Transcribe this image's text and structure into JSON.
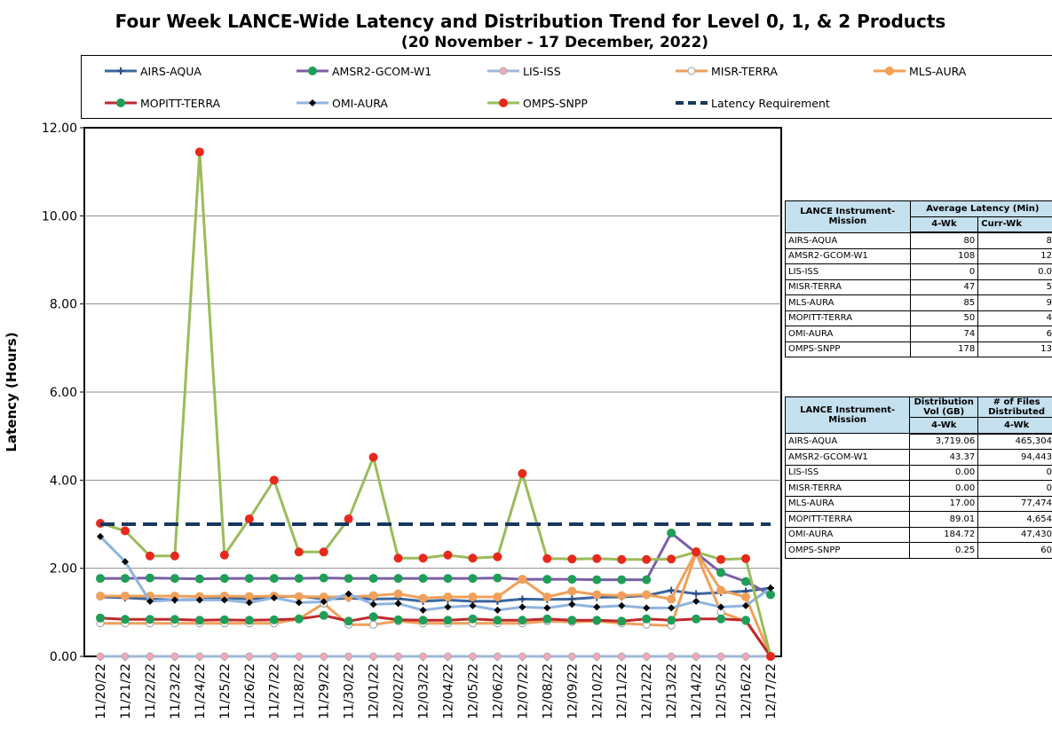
{
  "title": "Four Week LANCE-Wide Latency and Distribution Trend for Level 0, 1, & 2 Products",
  "subtitle": "(20  November   -  17  December,  2022)",
  "legend": [
    {
      "name": "AIRS-AQUA",
      "color": "#3b67a0",
      "marker": "plus"
    },
    {
      "name": "AMSR2-GCOM-W1",
      "color": "#7b5ea7",
      "marker": "dot-green"
    },
    {
      "name": "LIS-ISS",
      "color": "#9fb8d9",
      "marker": "circle-pink"
    },
    {
      "name": "MISR-TERRA",
      "color": "#f0a05a",
      "marker": "circle-white"
    },
    {
      "name": "MLS-AURA",
      "color": "#f0a05a",
      "marker": "dot-orange"
    },
    {
      "name": "MOPITT-TERRA",
      "color": "#c0282d",
      "marker": "dot-green"
    },
    {
      "name": "OMI-AURA",
      "color": "#8fb4e0",
      "marker": "diamond"
    },
    {
      "name": "OMPS-SNPP",
      "color": "#9bbb59",
      "marker": "dot-red"
    },
    {
      "name": "Latency Requirement",
      "color": "#17375e",
      "marker": "dash"
    }
  ],
  "table1": {
    "header_instrument": "LANCE Instrument-Mission",
    "header_avg": "Average Latency (Min)",
    "col_a": "4-Wk",
    "col_b": "Curr-Wk",
    "rows": [
      {
        "name": "AIRS-AQUA",
        "a": "80",
        "b": "8"
      },
      {
        "name": "AMSR2-GCOM-W1",
        "a": "108",
        "b": "12"
      },
      {
        "name": "LIS-ISS",
        "a": "0",
        "b": "0.0"
      },
      {
        "name": "MISR-TERRA",
        "a": "47",
        "b": "5"
      },
      {
        "name": "MLS-AURA",
        "a": "85",
        "b": "9"
      },
      {
        "name": "MOPITT-TERRA",
        "a": "50",
        "b": "4"
      },
      {
        "name": "OMI-AURA",
        "a": "74",
        "b": "6"
      },
      {
        "name": "OMPS-SNPP",
        "a": "178",
        "b": "13"
      }
    ]
  },
  "table2": {
    "header_instrument": "LANCE Instrument-Mission",
    "header_vol": "Distribution Vol (GB)",
    "header_files": "# of Files Distributed",
    "col_a": "4-Wk",
    "col_b": "4-Wk",
    "rows": [
      {
        "name": "AIRS-AQUA",
        "a": "3,719.06",
        "b": "465,304"
      },
      {
        "name": "AMSR2-GCOM-W1",
        "a": "43.37",
        "b": "94,443"
      },
      {
        "name": "LIS-ISS",
        "a": "0.00",
        "b": "0"
      },
      {
        "name": "MISR-TERRA",
        "a": "0.00",
        "b": "0"
      },
      {
        "name": "MLS-AURA",
        "a": "17.00",
        "b": "77,474"
      },
      {
        "name": "MOPITT-TERRA",
        "a": "89.01",
        "b": "4,654"
      },
      {
        "name": "OMI-AURA",
        "a": "184.72",
        "b": "47,430"
      },
      {
        "name": "OMPS-SNPP",
        "a": "0.25",
        "b": "60"
      }
    ]
  },
  "chart_data": {
    "type": "line",
    "title": "Four Week LANCE-Wide Latency and Distribution Trend for Level 0, 1, & 2 Products",
    "xlabel": "",
    "ylabel": "Latency (Hours)",
    "ylim": [
      0,
      12
    ],
    "yticks": [
      "0.00",
      "2.00",
      "4.00",
      "6.00",
      "8.00",
      "10.00",
      "12.00"
    ],
    "grid": true,
    "legend_position": "top",
    "categories": [
      "11/20/22",
      "11/21/22",
      "11/22/22",
      "11/23/22",
      "11/24/22",
      "11/25/22",
      "11/26/22",
      "11/27/22",
      "11/28/22",
      "11/29/22",
      "11/30/22",
      "12/01/22",
      "12/02/22",
      "12/03/22",
      "12/04/22",
      "12/05/22",
      "12/06/22",
      "12/07/22",
      "12/08/22",
      "12/09/22",
      "12/10/22",
      "12/11/22",
      "12/12/22",
      "12/13/22",
      "12/14/22",
      "12/15/22",
      "12/16/22",
      "12/17/22"
    ],
    "series": [
      {
        "name": "AIRS-AQUA",
        "color": "#3b67a0",
        "marker": "plus",
        "values": [
          1.35,
          1.33,
          1.3,
          1.28,
          1.29,
          1.33,
          1.3,
          1.35,
          1.37,
          1.3,
          1.32,
          1.3,
          1.31,
          1.25,
          1.28,
          1.25,
          1.25,
          1.3,
          1.29,
          1.3,
          1.34,
          1.35,
          1.38,
          1.5,
          1.42,
          1.45,
          1.48,
          1.55
        ]
      },
      {
        "name": "AMSR2-GCOM-W1",
        "color": "#7b5ea7",
        "marker": "dot-green",
        "values": [
          1.77,
          1.77,
          1.78,
          1.77,
          1.76,
          1.77,
          1.77,
          1.77,
          1.77,
          1.78,
          1.77,
          1.77,
          1.77,
          1.77,
          1.77,
          1.77,
          1.78,
          1.75,
          1.75,
          1.75,
          1.74,
          1.74,
          1.74,
          2.8,
          2.35,
          1.9,
          1.7,
          1.4
        ]
      },
      {
        "name": "LIS-ISS",
        "color": "#9fb8d9",
        "marker": "circle-pink",
        "values": [
          0,
          0,
          0,
          0,
          0,
          0,
          0,
          0,
          0,
          0,
          0,
          0,
          0,
          0,
          0,
          0,
          0,
          0,
          0,
          0,
          0,
          0,
          0,
          0,
          0,
          0,
          0,
          0
        ]
      },
      {
        "name": "MISR-TERRA",
        "color": "#f0a05a",
        "marker": "circle-white",
        "values": [
          0.75,
          0.75,
          0.75,
          0.75,
          0.75,
          0.75,
          0.75,
          0.75,
          0.85,
          1.2,
          0.72,
          0.72,
          0.8,
          0.75,
          0.75,
          0.75,
          0.75,
          0.75,
          0.8,
          0.78,
          0.8,
          0.75,
          0.72,
          0.7,
          2.35,
          1.0,
          0.8,
          0.0
        ]
      },
      {
        "name": "MLS-AURA",
        "color": "#f0a05a",
        "marker": "dot-orange",
        "values": [
          1.37,
          1.37,
          1.37,
          1.37,
          1.36,
          1.37,
          1.36,
          1.37,
          1.36,
          1.35,
          1.35,
          1.38,
          1.42,
          1.32,
          1.35,
          1.35,
          1.35,
          1.75,
          1.35,
          1.48,
          1.4,
          1.38,
          1.4,
          1.3,
          2.38,
          1.5,
          1.35,
          0.0
        ]
      },
      {
        "name": "MOPITT-TERRA",
        "color": "#c0282d",
        "marker": "dot-green",
        "values": [
          0.87,
          0.84,
          0.84,
          0.84,
          0.82,
          0.83,
          0.82,
          0.83,
          0.85,
          0.93,
          0.8,
          0.9,
          0.83,
          0.82,
          0.82,
          0.85,
          0.82,
          0.82,
          0.85,
          0.82,
          0.82,
          0.8,
          0.85,
          0.82,
          0.85,
          0.85,
          0.82,
          0.0
        ]
      },
      {
        "name": "OMI-AURA",
        "color": "#8fb4e0",
        "marker": "diamond",
        "values": [
          2.72,
          2.15,
          1.25,
          1.28,
          1.28,
          1.28,
          1.22,
          1.33,
          1.22,
          1.24,
          1.42,
          1.18,
          1.2,
          1.05,
          1.12,
          1.15,
          1.05,
          1.12,
          1.1,
          1.18,
          1.12,
          1.15,
          1.1,
          1.1,
          1.25,
          1.12,
          1.15,
          1.55
        ]
      },
      {
        "name": "OMPS-SNPP",
        "color": "#9bbb59",
        "marker": "dot-red",
        "values": [
          3.02,
          2.85,
          2.28,
          2.28,
          11.45,
          2.3,
          3.12,
          4.0,
          2.37,
          2.37,
          3.12,
          4.52,
          2.23,
          2.23,
          2.3,
          2.23,
          2.26,
          4.15,
          2.22,
          2.21,
          2.22,
          2.2,
          2.2,
          2.21,
          2.37,
          2.2,
          2.22,
          0.0
        ]
      },
      {
        "name": "Latency Requirement",
        "color": "#17375e",
        "marker": "dash",
        "values": [
          3,
          3,
          3,
          3,
          3,
          3,
          3,
          3,
          3,
          3,
          3,
          3,
          3,
          3,
          3,
          3,
          3,
          3,
          3,
          3,
          3,
          3,
          3,
          3,
          3,
          3,
          3,
          3
        ]
      }
    ]
  }
}
